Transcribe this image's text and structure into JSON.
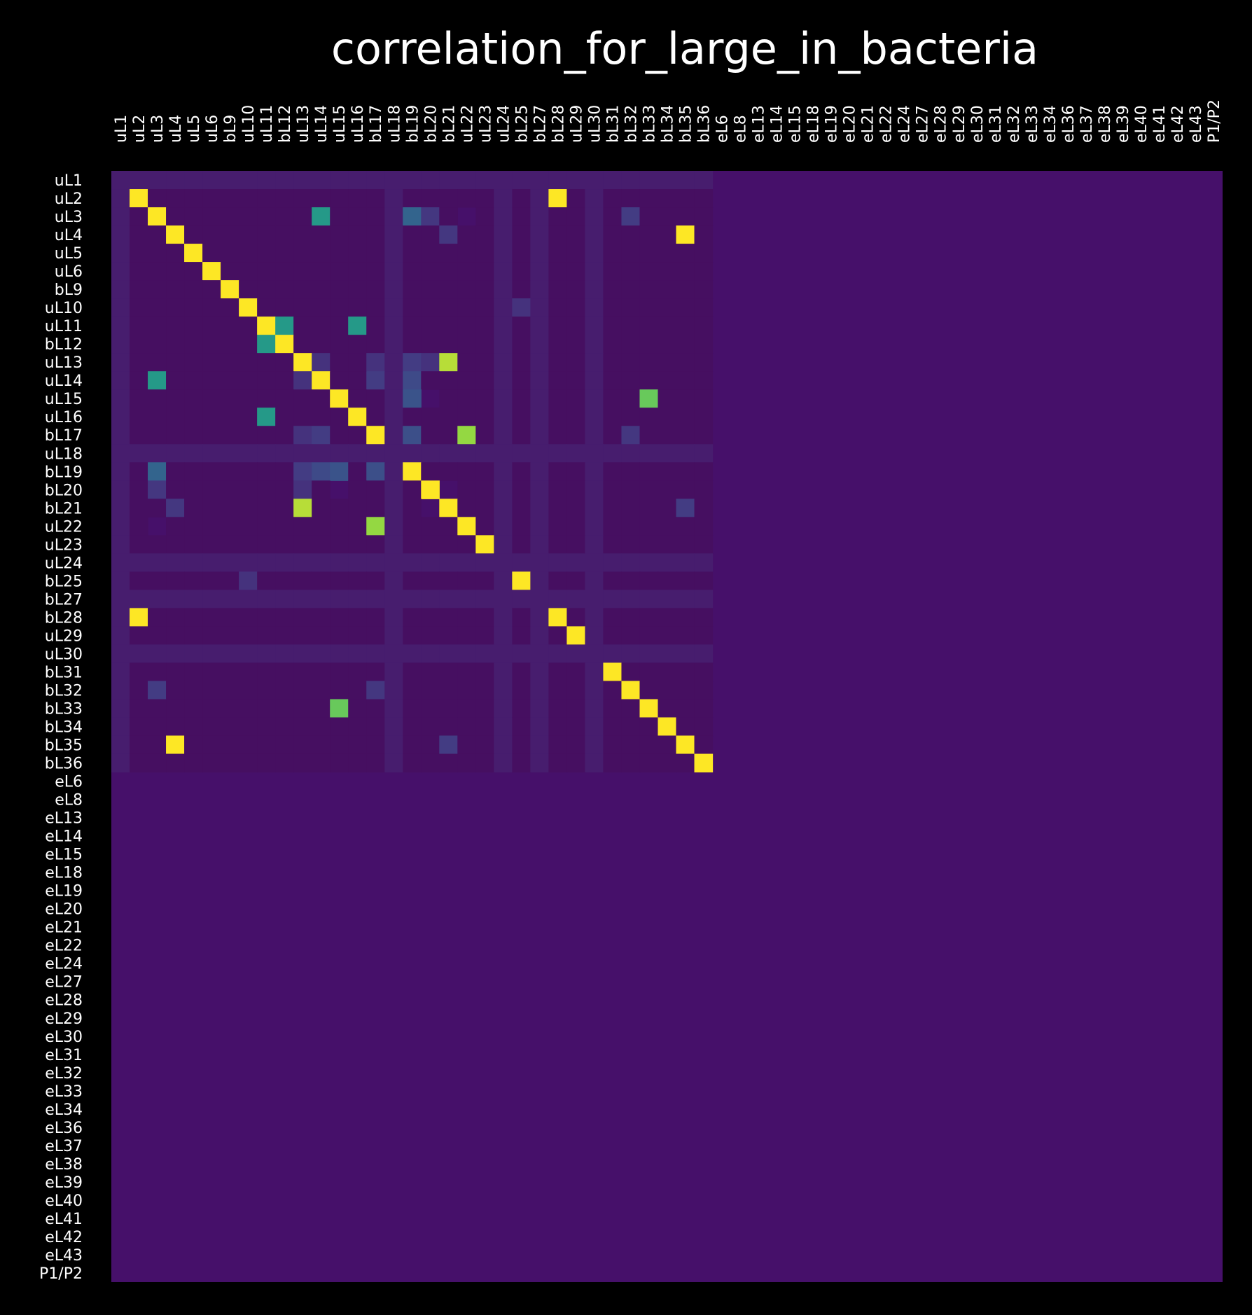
{
  "chart_data": {
    "type": "heatmap",
    "title": "correlation_for_large_in_bacteria",
    "labels": [
      "uL1",
      "uL2",
      "uL3",
      "uL4",
      "uL5",
      "uL6",
      "bL9",
      "uL10",
      "uL11",
      "bL12",
      "uL13",
      "uL14",
      "uL15",
      "uL16",
      "bL17",
      "uL18",
      "bL19",
      "bL20",
      "bL21",
      "uL22",
      "uL23",
      "uL24",
      "bL25",
      "bL27",
      "bL28",
      "uL29",
      "uL30",
      "bL31",
      "bL32",
      "bL33",
      "bL34",
      "bL35",
      "bL36",
      "eL6",
      "eL8",
      "eL13",
      "eL14",
      "eL15",
      "eL18",
      "eL19",
      "eL20",
      "eL21",
      "eL22",
      "eL24",
      "eL27",
      "eL28",
      "eL29",
      "eL30",
      "eL31",
      "eL32",
      "eL33",
      "eL34",
      "eL36",
      "eL37",
      "eL38",
      "eL39",
      "eL40",
      "eL41",
      "eL42",
      "eL43",
      "P1/P2"
    ],
    "colormap": "viridis",
    "value_range": [
      0,
      1
    ],
    "background_value": 0.12,
    "null_value": 0.1,
    "sub_value": 0.05,
    "active_block": [
      "uL2",
      "uL3",
      "uL4",
      "uL5",
      "uL6",
      "bL9",
      "uL10",
      "uL11",
      "bL12",
      "uL13",
      "uL14",
      "uL15",
      "uL16",
      "bL17",
      "bL19",
      "bL20",
      "bL21",
      "uL22",
      "uL23",
      "bL25",
      "bL28",
      "uL29",
      "bL31",
      "bL32",
      "bL33",
      "bL34",
      "bL35",
      "bL36"
    ],
    "cells": [
      [
        "uL2",
        "bL28",
        1.0
      ],
      [
        "uL3",
        "uL14",
        0.65
      ],
      [
        "uL3",
        "bL19",
        0.4
      ],
      [
        "uL3",
        "bL20",
        0.2
      ],
      [
        "uL3",
        "uL22",
        0.12
      ],
      [
        "uL3",
        "bL32",
        0.22
      ],
      [
        "uL4",
        "bL21",
        0.2
      ],
      [
        "uL4",
        "bL35",
        1.0
      ],
      [
        "uL10",
        "bL25",
        0.18
      ],
      [
        "uL11",
        "bL12",
        0.65
      ],
      [
        "uL11",
        "uL16",
        0.65
      ],
      [
        "uL13",
        "uL14",
        0.18
      ],
      [
        "uL13",
        "bL17",
        0.18
      ],
      [
        "uL13",
        "bL19",
        0.22
      ],
      [
        "uL13",
        "bL20",
        0.18
      ],
      [
        "uL13",
        "bL21",
        0.92
      ],
      [
        "uL14",
        "bL17",
        0.22
      ],
      [
        "uL14",
        "bL19",
        0.28
      ],
      [
        "uL15",
        "bL20",
        0.12
      ],
      [
        "uL15",
        "bL33",
        0.82
      ],
      [
        "bL17",
        "bL19",
        0.3
      ],
      [
        "bL17",
        "uL22",
        0.88
      ],
      [
        "bL17",
        "bL32",
        0.2
      ],
      [
        "bL19",
        "uL15",
        0.32
      ],
      [
        "bL20",
        "bL21",
        0.12
      ],
      [
        "bL21",
        "bL35",
        0.22
      ]
    ]
  }
}
